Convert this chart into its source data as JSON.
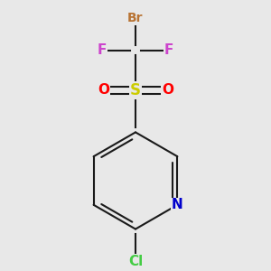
{
  "bg_color": "#e8e8e8",
  "bond_color": "#1a1a1a",
  "line_width": 1.5,
  "atom_colors": {
    "Br": "#b87333",
    "F": "#cc44cc",
    "S": "#cccc00",
    "O": "#ff0000",
    "N": "#0000cc",
    "Cl": "#44cc44",
    "C": "#1a1a1a"
  },
  "font_size": 10,
  "xlim": [
    -1.5,
    1.5
  ],
  "ylim": [
    -2.6,
    1.6
  ]
}
